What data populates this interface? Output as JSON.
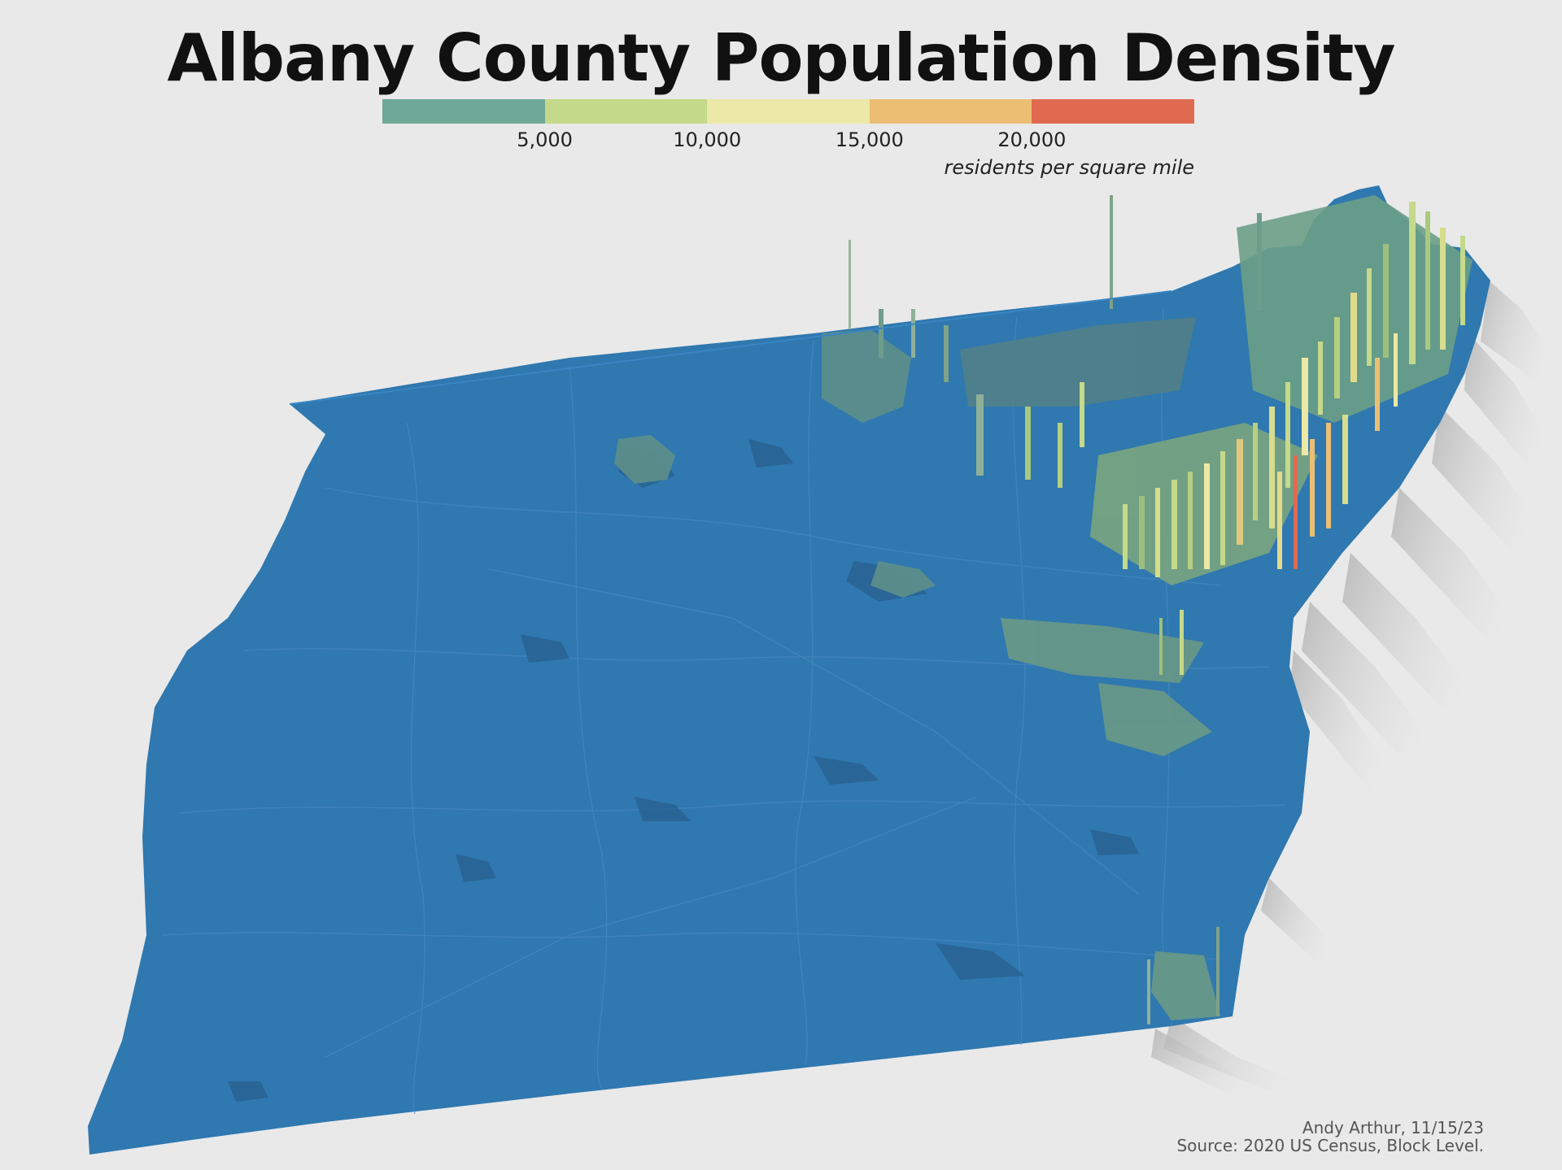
{
  "title": "Albany County Population Density",
  "legend": {
    "colors": [
      "#6fa896",
      "#c4d98a",
      "#ece8a8",
      "#ecbe74",
      "#df6a50"
    ],
    "ticks": [
      "5,000",
      "10,000",
      "15,000",
      "20,000"
    ],
    "unit_label": "residents per square mile"
  },
  "map": {
    "county_fill": "#2f78b0",
    "shadow_color": "#b4b4b4"
  },
  "credits": {
    "author": "Andy Arthur, 11/15/23",
    "source": "Source: 2020 US Census, Block Level."
  }
}
